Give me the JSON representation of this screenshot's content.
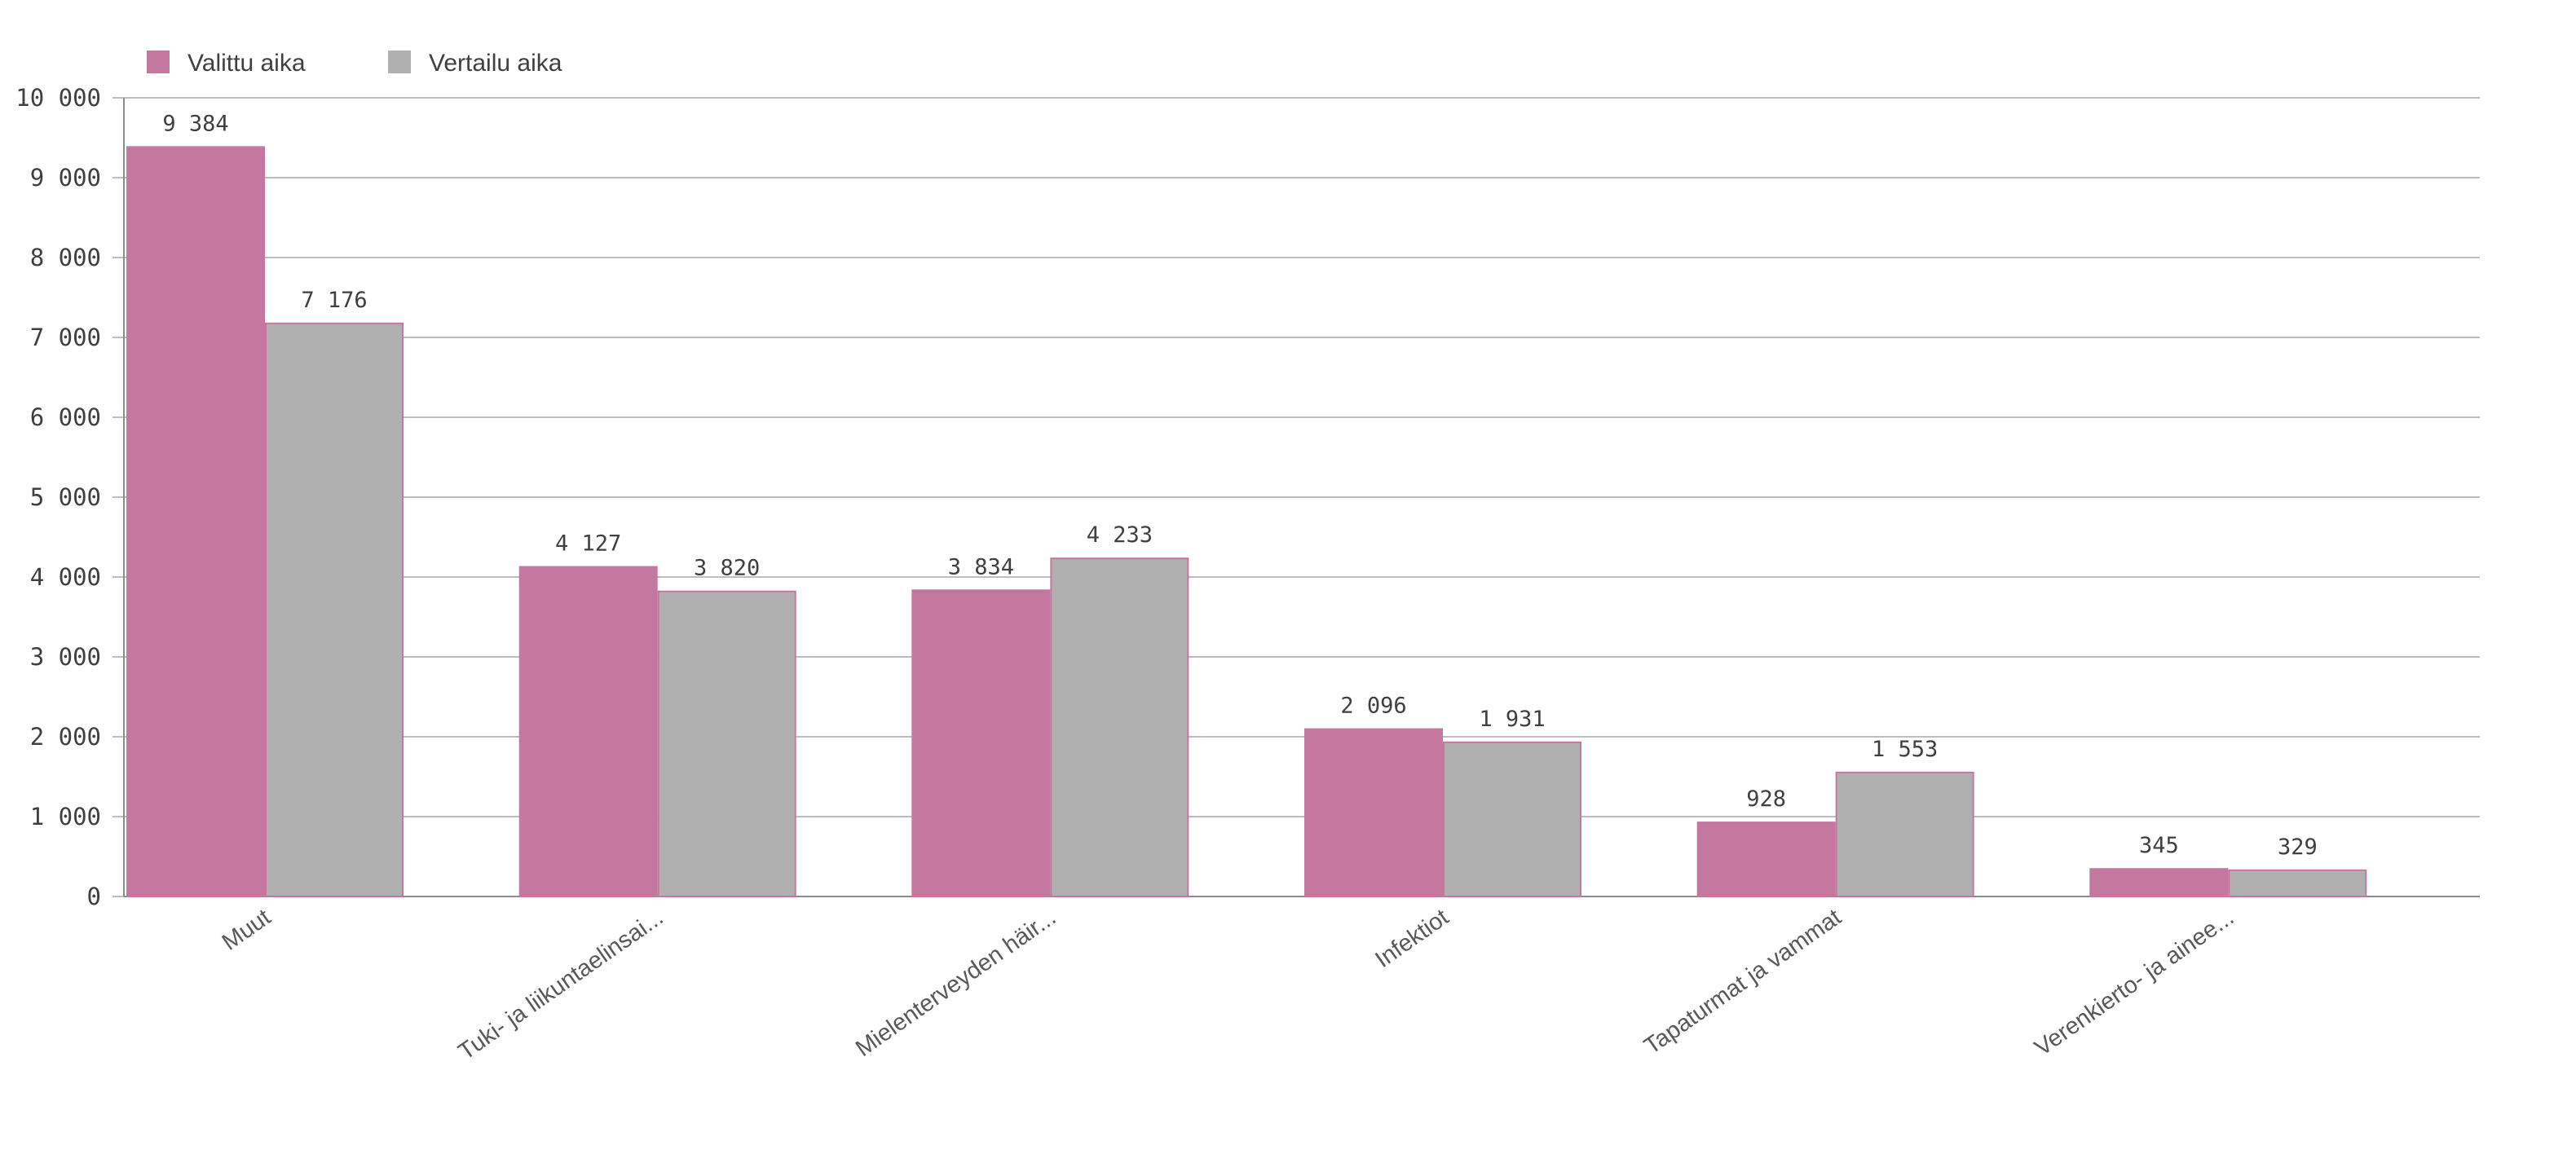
{
  "chart_data": {
    "type": "bar",
    "categories": [
      "Muut",
      "Tuki- ja liikuntaelinsai...",
      "Mielenterveyden häir...",
      "Infektiot",
      "Tapaturmat ja vammat",
      "Verenkierto- ja ainee..."
    ],
    "series": [
      {
        "name": "Valittu aika",
        "color": "#c5789f",
        "values": [
          9384,
          4127,
          3834,
          2096,
          928,
          345
        ]
      },
      {
        "name": "Vertailu aika",
        "color": "#b0b0b0",
        "values": [
          7176,
          3820,
          4233,
          1931,
          1553,
          329
        ]
      }
    ],
    "data_labels": [
      [
        "9 384",
        "4 127",
        "3 834",
        "2 096",
        "928",
        "345"
      ],
      [
        "7 176",
        "3 820",
        "4 233",
        "1 931",
        "1 553",
        "329"
      ]
    ],
    "yticks": [
      0,
      1000,
      2000,
      3000,
      4000,
      5000,
      6000,
      7000,
      8000,
      9000,
      10000
    ],
    "ytick_labels": [
      "0",
      "1 000",
      "2 000",
      "3 000",
      "4 000",
      "5 000",
      "6 000",
      "7 000",
      "8 000",
      "9 000",
      "10 000"
    ],
    "ylim": [
      0,
      10000
    ],
    "grid": true,
    "legend_position": "top-left",
    "title": "",
    "xlabel": "",
    "ylabel": ""
  }
}
